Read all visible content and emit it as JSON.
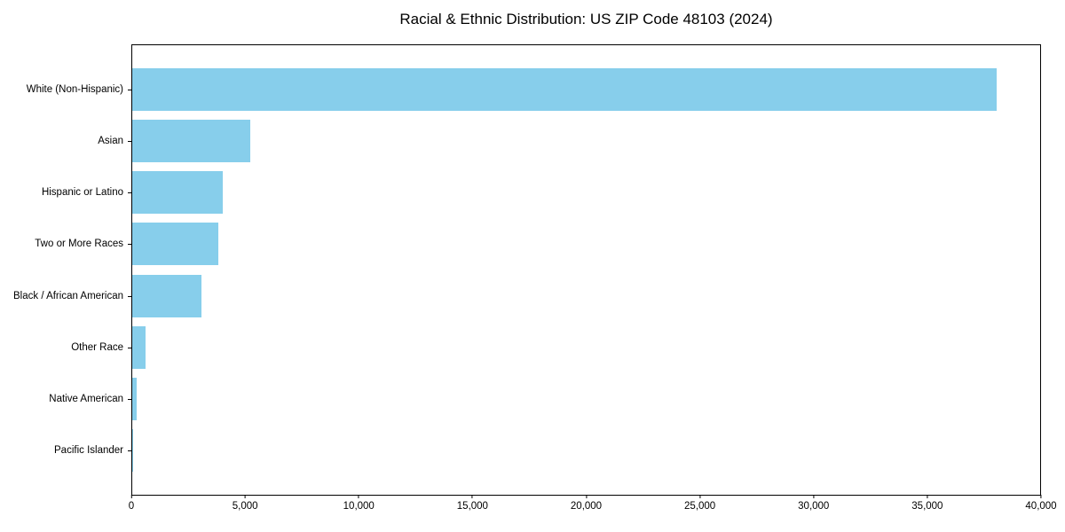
{
  "chart_data": {
    "type": "bar",
    "orientation": "horizontal",
    "title": "Racial & Ethnic Distribution: US ZIP Code 48103 (2024)",
    "categories": [
      "White (Non-Hispanic)",
      "Asian",
      "Hispanic or Latino",
      "Two or More Races",
      "Black / African American",
      "Other Race",
      "Native American",
      "Pacific Islander"
    ],
    "values": [
      38100,
      5200,
      4000,
      3800,
      3050,
      575,
      200,
      30
    ],
    "xlim": [
      0,
      40000
    ],
    "xtick_labels": [
      "0",
      "5,000",
      "10,000",
      "15,000",
      "20,000",
      "25,000",
      "30,000",
      "35,000",
      "40,000"
    ],
    "xlabel": "",
    "ylabel": "",
    "bar_color": "#87CEEB",
    "frame_color": "#000000",
    "background_color": "#ffffff",
    "grid": false,
    "legend": false
  }
}
